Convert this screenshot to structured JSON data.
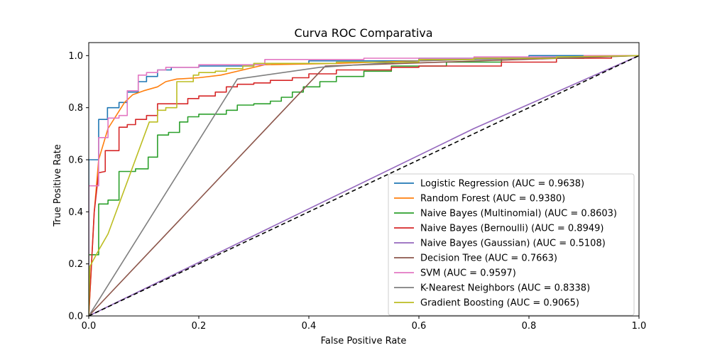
{
  "chart_data": {
    "type": "line",
    "title": "Curva ROC Comparativa",
    "xlabel": "False Positive Rate",
    "ylabel": "True Positive Rate",
    "xlim": [
      0,
      1
    ],
    "ylim": [
      0,
      1.05
    ],
    "xticks": [
      0,
      0.2,
      0.4,
      0.6,
      0.8,
      1.0
    ],
    "xtick_labels": [
      "0.0",
      "0.2",
      "0.4",
      "0.6",
      "0.8",
      "1.0"
    ],
    "yticks": [
      0,
      0.2,
      0.4,
      0.6,
      0.8,
      1.0
    ],
    "ytick_labels": [
      "0.0",
      "0.2",
      "0.4",
      "0.6",
      "0.8",
      "1.0"
    ],
    "grid": false,
    "legend_position": "lower-right",
    "series": [
      {
        "name": "Logistic Regression (AUC = 0.9638)",
        "color": "#1f77b4",
        "points": [
          [
            0,
            0
          ],
          [
            0,
            0.6
          ],
          [
            0.018,
            0.6
          ],
          [
            0.018,
            0.755
          ],
          [
            0.034,
            0.755
          ],
          [
            0.034,
            0.8
          ],
          [
            0.055,
            0.8
          ],
          [
            0.055,
            0.82
          ],
          [
            0.07,
            0.82
          ],
          [
            0.07,
            0.86
          ],
          [
            0.09,
            0.86
          ],
          [
            0.09,
            0.9
          ],
          [
            0.105,
            0.9
          ],
          [
            0.105,
            0.92
          ],
          [
            0.125,
            0.92
          ],
          [
            0.125,
            0.945
          ],
          [
            0.15,
            0.945
          ],
          [
            0.15,
            0.955
          ],
          [
            0.2,
            0.955
          ],
          [
            0.2,
            0.96
          ],
          [
            0.3,
            0.96
          ],
          [
            0.3,
            0.97
          ],
          [
            0.4,
            0.97
          ],
          [
            0.4,
            0.98
          ],
          [
            0.6,
            0.98
          ],
          [
            0.6,
            0.99
          ],
          [
            0.8,
            0.99
          ],
          [
            0.8,
            1.0
          ],
          [
            1.0,
            1.0
          ]
        ]
      },
      {
        "name": "Random Forest (AUC = 0.9380)",
        "color": "#ff7f0e",
        "points": [
          [
            0,
            0
          ],
          [
            0.01,
            0.4
          ],
          [
            0.018,
            0.6
          ],
          [
            0.035,
            0.72
          ],
          [
            0.05,
            0.77
          ],
          [
            0.065,
            0.82
          ],
          [
            0.08,
            0.85
          ],
          [
            0.1,
            0.865
          ],
          [
            0.125,
            0.88
          ],
          [
            0.14,
            0.9
          ],
          [
            0.16,
            0.91
          ],
          [
            0.2,
            0.915
          ],
          [
            0.24,
            0.925
          ],
          [
            0.28,
            0.945
          ],
          [
            0.32,
            0.965
          ],
          [
            0.45,
            0.97
          ],
          [
            0.6,
            0.98
          ],
          [
            0.8,
            0.99
          ],
          [
            1.0,
            1.0
          ]
        ]
      },
      {
        "name": "Naive Bayes (Multinomial) (AUC = 0.8603)",
        "color": "#2ca02c",
        "points": [
          [
            0,
            0
          ],
          [
            0,
            0.235
          ],
          [
            0.018,
            0.235
          ],
          [
            0.018,
            0.43
          ],
          [
            0.035,
            0.43
          ],
          [
            0.035,
            0.445
          ],
          [
            0.055,
            0.445
          ],
          [
            0.055,
            0.555
          ],
          [
            0.085,
            0.555
          ],
          [
            0.085,
            0.565
          ],
          [
            0.108,
            0.565
          ],
          [
            0.108,
            0.61
          ],
          [
            0.125,
            0.61
          ],
          [
            0.125,
            0.695
          ],
          [
            0.145,
            0.695
          ],
          [
            0.145,
            0.705
          ],
          [
            0.165,
            0.705
          ],
          [
            0.165,
            0.745
          ],
          [
            0.18,
            0.745
          ],
          [
            0.18,
            0.765
          ],
          [
            0.2,
            0.765
          ],
          [
            0.2,
            0.775
          ],
          [
            0.25,
            0.775
          ],
          [
            0.25,
            0.79
          ],
          [
            0.27,
            0.79
          ],
          [
            0.27,
            0.81
          ],
          [
            0.3,
            0.81
          ],
          [
            0.3,
            0.815
          ],
          [
            0.33,
            0.815
          ],
          [
            0.33,
            0.825
          ],
          [
            0.35,
            0.825
          ],
          [
            0.35,
            0.84
          ],
          [
            0.37,
            0.84
          ],
          [
            0.37,
            0.86
          ],
          [
            0.39,
            0.86
          ],
          [
            0.39,
            0.88
          ],
          [
            0.42,
            0.88
          ],
          [
            0.42,
            0.9
          ],
          [
            0.45,
            0.9
          ],
          [
            0.45,
            0.92
          ],
          [
            0.5,
            0.92
          ],
          [
            0.5,
            0.94
          ],
          [
            0.55,
            0.94
          ],
          [
            0.55,
            0.96
          ],
          [
            0.65,
            0.96
          ],
          [
            0.65,
            0.975
          ],
          [
            0.75,
            0.975
          ],
          [
            0.75,
            0.99
          ],
          [
            0.9,
            0.99
          ],
          [
            0.9,
            1.0
          ],
          [
            1.0,
            1.0
          ]
        ]
      },
      {
        "name": "Naive Bayes (Bernoulli) (AUC = 0.8949)",
        "color": "#d62728",
        "points": [
          [
            0,
            0
          ],
          [
            0.01,
            0.4
          ],
          [
            0.018,
            0.55
          ],
          [
            0.03,
            0.555
          ],
          [
            0.03,
            0.635
          ],
          [
            0.055,
            0.635
          ],
          [
            0.055,
            0.725
          ],
          [
            0.07,
            0.725
          ],
          [
            0.07,
            0.735
          ],
          [
            0.085,
            0.735
          ],
          [
            0.085,
            0.755
          ],
          [
            0.105,
            0.755
          ],
          [
            0.105,
            0.77
          ],
          [
            0.125,
            0.77
          ],
          [
            0.125,
            0.815
          ],
          [
            0.18,
            0.815
          ],
          [
            0.18,
            0.835
          ],
          [
            0.2,
            0.835
          ],
          [
            0.2,
            0.845
          ],
          [
            0.23,
            0.845
          ],
          [
            0.23,
            0.86
          ],
          [
            0.25,
            0.86
          ],
          [
            0.25,
            0.88
          ],
          [
            0.27,
            0.88
          ],
          [
            0.27,
            0.89
          ],
          [
            0.3,
            0.89
          ],
          [
            0.3,
            0.895
          ],
          [
            0.33,
            0.895
          ],
          [
            0.33,
            0.905
          ],
          [
            0.37,
            0.905
          ],
          [
            0.37,
            0.915
          ],
          [
            0.4,
            0.915
          ],
          [
            0.4,
            0.93
          ],
          [
            0.45,
            0.93
          ],
          [
            0.45,
            0.945
          ],
          [
            0.55,
            0.945
          ],
          [
            0.55,
            0.955
          ],
          [
            0.6,
            0.955
          ],
          [
            0.6,
            0.96
          ],
          [
            0.75,
            0.96
          ],
          [
            0.75,
            0.975
          ],
          [
            0.85,
            0.975
          ],
          [
            0.85,
            0.99
          ],
          [
            0.95,
            0.99
          ],
          [
            0.95,
            1.0
          ],
          [
            1.0,
            1.0
          ]
        ]
      },
      {
        "name": "Naive Bayes (Gaussian) (AUC = 0.5108)",
        "color": "#9467bd",
        "points": [
          [
            0,
            0
          ],
          [
            0.7,
            0.72
          ],
          [
            1.0,
            1.0
          ]
        ]
      },
      {
        "name": "Decision Tree (AUC = 0.7663)",
        "color": "#8c564b",
        "points": [
          [
            0,
            0
          ],
          [
            0.43,
            0.96
          ],
          [
            1.0,
            1.0
          ]
        ]
      },
      {
        "name": "SVM (AUC = 0.9597)",
        "color": "#e377c2",
        "points": [
          [
            0,
            0
          ],
          [
            0,
            0.5
          ],
          [
            0.018,
            0.5
          ],
          [
            0.018,
            0.685
          ],
          [
            0.035,
            0.685
          ],
          [
            0.035,
            0.76
          ],
          [
            0.055,
            0.76
          ],
          [
            0.055,
            0.77
          ],
          [
            0.07,
            0.77
          ],
          [
            0.07,
            0.865
          ],
          [
            0.09,
            0.865
          ],
          [
            0.09,
            0.925
          ],
          [
            0.105,
            0.925
          ],
          [
            0.105,
            0.935
          ],
          [
            0.125,
            0.935
          ],
          [
            0.125,
            0.945
          ],
          [
            0.14,
            0.945
          ],
          [
            0.14,
            0.955
          ],
          [
            0.2,
            0.955
          ],
          [
            0.2,
            0.965
          ],
          [
            0.32,
            0.965
          ],
          [
            0.32,
            0.985
          ],
          [
            0.5,
            0.985
          ],
          [
            0.5,
            0.99
          ],
          [
            0.7,
            0.99
          ],
          [
            0.7,
            0.995
          ],
          [
            0.9,
            0.995
          ],
          [
            0.9,
            1.0
          ],
          [
            1.0,
            1.0
          ]
        ]
      },
      {
        "name": "K-Nearest Neighbors (AUC = 0.8338)",
        "color": "#7f7f7f",
        "points": [
          [
            0,
            0
          ],
          [
            0.27,
            0.91
          ],
          [
            0.42,
            0.955
          ],
          [
            0.6,
            0.98
          ],
          [
            1.0,
            1.0
          ]
        ]
      },
      {
        "name": "Gradient Boosting (AUC = 0.9065)",
        "color": "#bcbd22",
        "points": [
          [
            0,
            0
          ],
          [
            0.002,
            0.19
          ],
          [
            0.02,
            0.26
          ],
          [
            0.035,
            0.315
          ],
          [
            0.11,
            0.745
          ],
          [
            0.125,
            0.745
          ],
          [
            0.125,
            0.79
          ],
          [
            0.14,
            0.79
          ],
          [
            0.14,
            0.8
          ],
          [
            0.16,
            0.8
          ],
          [
            0.16,
            0.9
          ],
          [
            0.19,
            0.9
          ],
          [
            0.19,
            0.925
          ],
          [
            0.2,
            0.925
          ],
          [
            0.2,
            0.935
          ],
          [
            0.23,
            0.935
          ],
          [
            0.23,
            0.94
          ],
          [
            0.25,
            0.94
          ],
          [
            0.25,
            0.95
          ],
          [
            0.28,
            0.95
          ],
          [
            0.28,
            0.96
          ],
          [
            0.3,
            0.96
          ],
          [
            0.3,
            0.97
          ],
          [
            0.45,
            0.97
          ],
          [
            0.45,
            0.975
          ],
          [
            0.6,
            0.975
          ],
          [
            0.6,
            0.985
          ],
          [
            0.7,
            0.985
          ],
          [
            0.7,
            0.99
          ],
          [
            0.85,
            0.99
          ],
          [
            0.85,
            0.995
          ],
          [
            1.0,
            1.0
          ]
        ]
      }
    ],
    "reference_line": {
      "color": "#000000",
      "points": [
        [
          0,
          0
        ],
        [
          1,
          1
        ]
      ]
    }
  }
}
